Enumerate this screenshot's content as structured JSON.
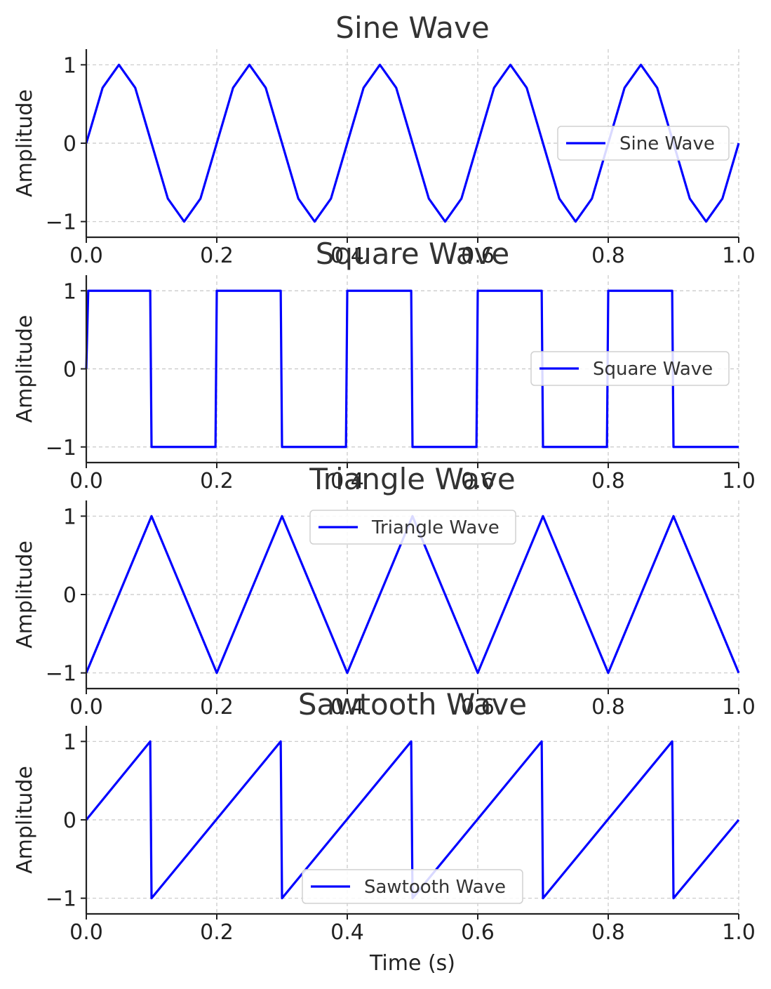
{
  "chart_data": [
    {
      "type": "line",
      "title": "Sine Wave",
      "xlabel": "",
      "ylabel": "Amplitude",
      "xlim": [
        0,
        1
      ],
      "ylim": [
        -1.2,
        1.2
      ],
      "xticks": [
        "0.0",
        "0.2",
        "0.4",
        "0.6",
        "0.8",
        "1.0"
      ],
      "yticks": [
        "1",
        "0",
        "−1"
      ],
      "grid": true,
      "legend_position": "center-right",
      "series": [
        {
          "name": "Sine Wave",
          "color": "#0000ff",
          "x": [
            0,
            0.025,
            0.05,
            0.075,
            0.1,
            0.125,
            0.15,
            0.175,
            0.2,
            0.225,
            0.25,
            0.275,
            0.3,
            0.325,
            0.35,
            0.375,
            0.4,
            0.425,
            0.45,
            0.475,
            0.5,
            0.525,
            0.55,
            0.575,
            0.6,
            0.625,
            0.65,
            0.675,
            0.7,
            0.725,
            0.75,
            0.775,
            0.8,
            0.825,
            0.85,
            0.875,
            0.9,
            0.925,
            0.95,
            0.975,
            1.0
          ],
          "values": [
            0,
            0.707,
            1,
            0.707,
            0,
            -0.707,
            -1,
            -0.707,
            0,
            0.707,
            1,
            0.707,
            0,
            -0.707,
            -1,
            -0.707,
            0,
            0.707,
            1,
            0.707,
            0,
            -0.707,
            -1,
            -0.707,
            0,
            0.707,
            1,
            0.707,
            0,
            -0.707,
            -1,
            -0.707,
            0,
            0.707,
            1,
            0.707,
            0,
            -0.707,
            -1,
            -0.707,
            0
          ]
        }
      ]
    },
    {
      "type": "line",
      "title": "Square Wave",
      "xlabel": "",
      "ylabel": "Amplitude",
      "xlim": [
        0,
        1
      ],
      "ylim": [
        -1.2,
        1.2
      ],
      "xticks": [
        "0.0",
        "0.2",
        "0.4",
        "0.6",
        "0.8",
        "1.0"
      ],
      "yticks": [
        "1",
        "0",
        "−1"
      ],
      "grid": true,
      "legend_position": "center-right",
      "series": [
        {
          "name": "Square Wave",
          "color": "#0000ff",
          "x": [
            0,
            0.003,
            0.098,
            0.1,
            0.198,
            0.2,
            0.298,
            0.3,
            0.398,
            0.4,
            0.498,
            0.5,
            0.598,
            0.6,
            0.698,
            0.7,
            0.798,
            0.8,
            0.898,
            0.9,
            1.0
          ],
          "values": [
            0,
            1,
            1,
            -1,
            -1,
            1,
            1,
            -1,
            -1,
            1,
            1,
            -1,
            -1,
            1,
            1,
            -1,
            -1,
            1,
            1,
            -1,
            -1
          ]
        }
      ]
    },
    {
      "type": "line",
      "title": "Triangle Wave",
      "xlabel": "",
      "ylabel": "Amplitude",
      "xlim": [
        0,
        1
      ],
      "ylim": [
        -1.2,
        1.2
      ],
      "xticks": [
        "0.0",
        "0.2",
        "0.4",
        "0.6",
        "0.8",
        "1.0"
      ],
      "yticks": [
        "1",
        "0",
        "−1"
      ],
      "grid": true,
      "legend_position": "upper-center",
      "series": [
        {
          "name": "Triangle Wave",
          "color": "#0000ff",
          "x": [
            0,
            0.1,
            0.2,
            0.3,
            0.4,
            0.5,
            0.6,
            0.7,
            0.8,
            0.9,
            1.0
          ],
          "values": [
            -1,
            1,
            -1,
            1,
            -1,
            1,
            -1,
            1,
            -1,
            1,
            -1
          ]
        }
      ]
    },
    {
      "type": "line",
      "title": "Sawtooth Wave",
      "xlabel": "Time (s)",
      "ylabel": "Amplitude",
      "xlim": [
        0,
        1
      ],
      "ylim": [
        -1.2,
        1.2
      ],
      "xticks": [
        "0.0",
        "0.2",
        "0.4",
        "0.6",
        "0.8",
        "1.0"
      ],
      "yticks": [
        "1",
        "0",
        "−1"
      ],
      "grid": true,
      "legend_position": "lower-center",
      "series": [
        {
          "name": "Sawtooth Wave",
          "color": "#0000ff",
          "x": [
            0,
            0.098,
            0.1,
            0.298,
            0.3,
            0.498,
            0.5,
            0.698,
            0.7,
            0.898,
            0.9,
            1.0
          ],
          "values": [
            0,
            1,
            -1,
            1,
            -1,
            1,
            -1,
            1,
            -1,
            1,
            -1,
            0
          ]
        }
      ]
    }
  ]
}
